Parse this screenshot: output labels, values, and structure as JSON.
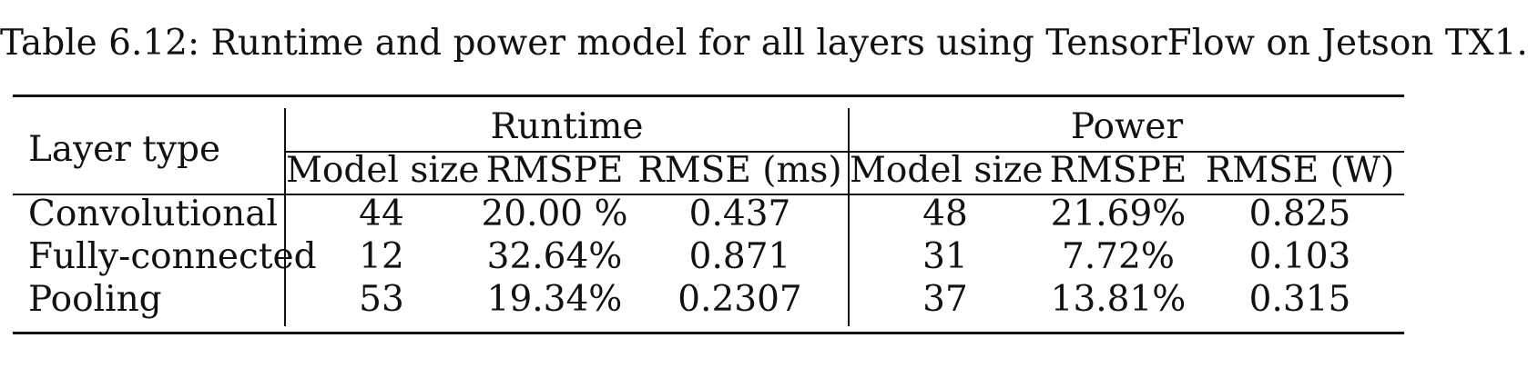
{
  "caption": "Table 6.12: Runtime and power model for all layers using TensorFlow on Jetson TX1.",
  "table": {
    "row_header": "Layer type",
    "groups": [
      "Runtime",
      "Power"
    ],
    "subheaders": [
      "Model size",
      "RMSPE",
      "RMSE (ms)",
      "Model size",
      "RMSPE",
      "RMSE (W)"
    ],
    "rows": [
      {
        "layer": "Convolutional",
        "cells": [
          "44",
          "20.00 %",
          "0.437",
          "48",
          "21.69%",
          "0.825"
        ]
      },
      {
        "layer": "Fully-connected",
        "cells": [
          "12",
          "32.64%",
          "0.871",
          "31",
          "7.72%",
          "0.103"
        ]
      },
      {
        "layer": "Pooling",
        "cells": [
          "53",
          "19.34%",
          "0.2307",
          "37",
          "13.81%",
          "0.315"
        ]
      }
    ]
  }
}
